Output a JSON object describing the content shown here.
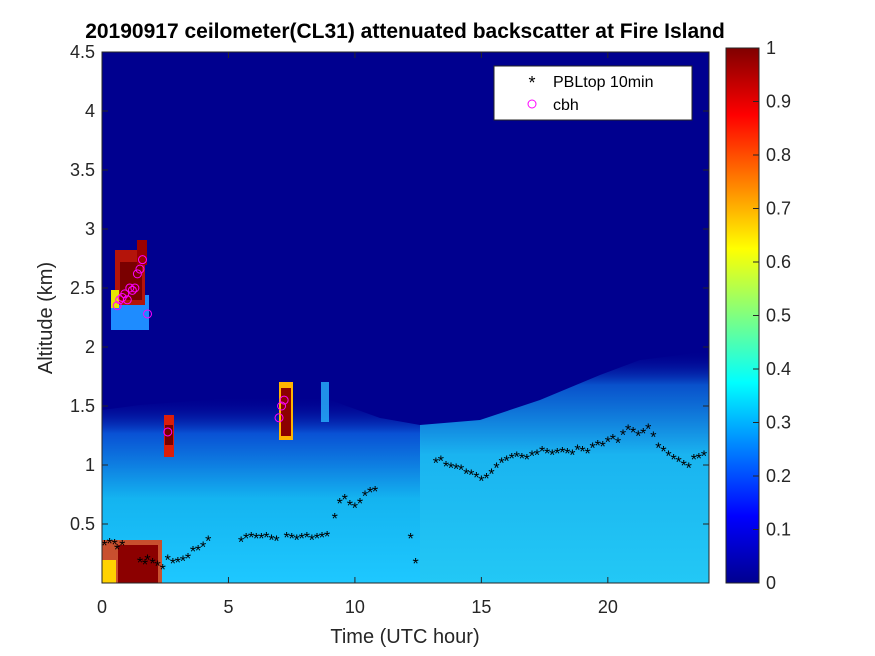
{
  "chart_data": {
    "type": "heatmap",
    "title": "20190917 ceilometer(CL31) attenuated backscatter at Fire Island",
    "xlabel": "Time (UTC hour)",
    "ylabel": "Altitude (km)",
    "xlim": [
      0,
      24
    ],
    "ylim": [
      0,
      4.5
    ],
    "xticks": [
      0,
      5,
      10,
      15,
      20
    ],
    "xtick_labels": [
      "0",
      "5",
      "10",
      "15",
      "20"
    ],
    "yticks": [
      0.5,
      1,
      1.5,
      2,
      2.5,
      3,
      3.5,
      4,
      4.5
    ],
    "ytick_labels": [
      "0.5",
      "1",
      "1.5",
      "2",
      "2.5",
      "3",
      "3.5",
      "4",
      "4.5"
    ],
    "colorbar": {
      "range": [
        0,
        1
      ],
      "ticks": [
        0,
        0.1,
        0.2,
        0.3,
        0.4,
        0.5,
        0.6,
        0.7,
        0.8,
        0.9,
        1
      ],
      "tick_labels": [
        "0",
        "0.1",
        "0.2",
        "0.3",
        "0.4",
        "0.5",
        "0.6",
        "0.7",
        "0.8",
        "0.9",
        "1"
      ],
      "colormap": "jet"
    },
    "legend": {
      "location": "top-right",
      "entries": [
        {
          "label": "PBLtop 10min",
          "marker": "*",
          "color": "#000000"
        },
        {
          "label": "cbh",
          "marker": "o",
          "color": "#ff00ff"
        }
      ]
    },
    "series": [
      {
        "name": "PBLtop 10min",
        "marker": "*",
        "color": "#000000",
        "x": [
          0.1,
          0.3,
          0.5,
          0.6,
          0.8,
          1.5,
          1.7,
          1.8,
          2.0,
          2.2,
          2.4,
          2.6,
          2.8,
          3.0,
          3.2,
          3.4,
          3.6,
          3.8,
          4.0,
          4.2,
          5.5,
          5.7,
          5.9,
          6.1,
          6.3,
          6.5,
          6.7,
          6.9,
          7.3,
          7.5,
          7.7,
          7.9,
          8.1,
          8.3,
          8.5,
          8.7,
          8.9,
          9.2,
          9.4,
          9.6,
          9.8,
          10.0,
          10.2,
          10.4,
          10.6,
          10.8,
          12.2,
          12.4,
          13.2,
          13.4,
          13.6,
          13.8,
          14.0,
          14.2,
          14.4,
          14.6,
          14.8,
          15.0,
          15.2,
          15.4,
          15.6,
          15.8,
          16.0,
          16.2,
          16.4,
          16.6,
          16.8,
          17.0,
          17.2,
          17.4,
          17.6,
          17.8,
          18.0,
          18.2,
          18.4,
          18.6,
          18.8,
          19.0,
          19.2,
          19.4,
          19.6,
          19.8,
          20.0,
          20.2,
          20.4,
          20.6,
          20.8,
          21.0,
          21.2,
          21.4,
          21.6,
          21.8,
          22.0,
          22.2,
          22.4,
          22.6,
          22.8,
          23.0,
          23.2,
          23.4,
          23.6,
          23.8
        ],
        "y": [
          0.32,
          0.34,
          0.33,
          0.29,
          0.32,
          0.18,
          0.16,
          0.2,
          0.17,
          0.15,
          0.12,
          0.2,
          0.17,
          0.18,
          0.19,
          0.21,
          0.27,
          0.28,
          0.31,
          0.36,
          0.35,
          0.38,
          0.39,
          0.38,
          0.38,
          0.39,
          0.37,
          0.36,
          0.39,
          0.38,
          0.37,
          0.38,
          0.39,
          0.37,
          0.38,
          0.39,
          0.4,
          0.55,
          0.68,
          0.71,
          0.66,
          0.64,
          0.68,
          0.74,
          0.77,
          0.78,
          0.38,
          0.17,
          1.02,
          1.04,
          0.99,
          0.98,
          0.97,
          0.96,
          0.93,
          0.92,
          0.9,
          0.87,
          0.89,
          0.93,
          0.98,
          1.02,
          1.04,
          1.06,
          1.07,
          1.06,
          1.05,
          1.08,
          1.09,
          1.12,
          1.1,
          1.09,
          1.1,
          1.11,
          1.1,
          1.09,
          1.13,
          1.12,
          1.1,
          1.15,
          1.17,
          1.16,
          1.2,
          1.22,
          1.19,
          1.26,
          1.3,
          1.28,
          1.25,
          1.27,
          1.31,
          1.24,
          1.15,
          1.12,
          1.08,
          1.05,
          1.03,
          1.0,
          0.98,
          1.05,
          1.06,
          1.08
        ]
      },
      {
        "name": "cbh",
        "marker": "o",
        "color": "#ff00ff",
        "x": [
          0.6,
          0.7,
          0.8,
          0.9,
          1.0,
          1.1,
          1.2,
          1.3,
          1.4,
          1.5,
          1.6,
          1.8,
          2.6,
          7.0,
          7.1,
          7.2
        ],
        "y": [
          2.35,
          2.4,
          2.42,
          2.45,
          2.4,
          2.5,
          2.48,
          2.5,
          2.62,
          2.66,
          2.74,
          2.28,
          1.28,
          1.4,
          1.5,
          1.55
        ]
      }
    ]
  }
}
